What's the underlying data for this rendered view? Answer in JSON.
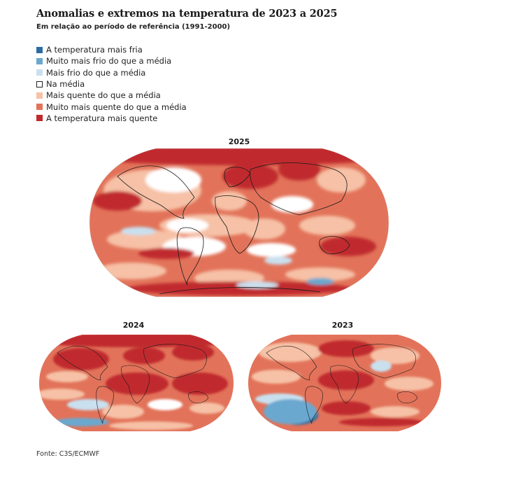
{
  "title": "Anomalias e extremos na temperatura de 2023 a 2025",
  "subtitle": "Em relação ao período de referência (1991-2000)",
  "legend": [
    {
      "label": "A temperatura mais fria",
      "color": "#2b6ca3"
    },
    {
      "label": "Muito mais frio do que a média",
      "color": "#6aa8cf"
    },
    {
      "label": "Mais frio do que a média",
      "color": "#c9e0ef"
    },
    {
      "label": "Na média",
      "color": "#ffffff"
    },
    {
      "label": "Mais quente do que a média",
      "color": "#f6c1a6"
    },
    {
      "label": "Muito mais quente do que a média",
      "color": "#e2735a"
    },
    {
      "label": "A temperatura mais quente",
      "color": "#c0292d"
    }
  ],
  "maps": {
    "m2025": {
      "label": "2025"
    },
    "m2024": {
      "label": "2024"
    },
    "m2023": {
      "label": "2023"
    }
  },
  "source": "Fonte: C3S/ECMWF"
}
